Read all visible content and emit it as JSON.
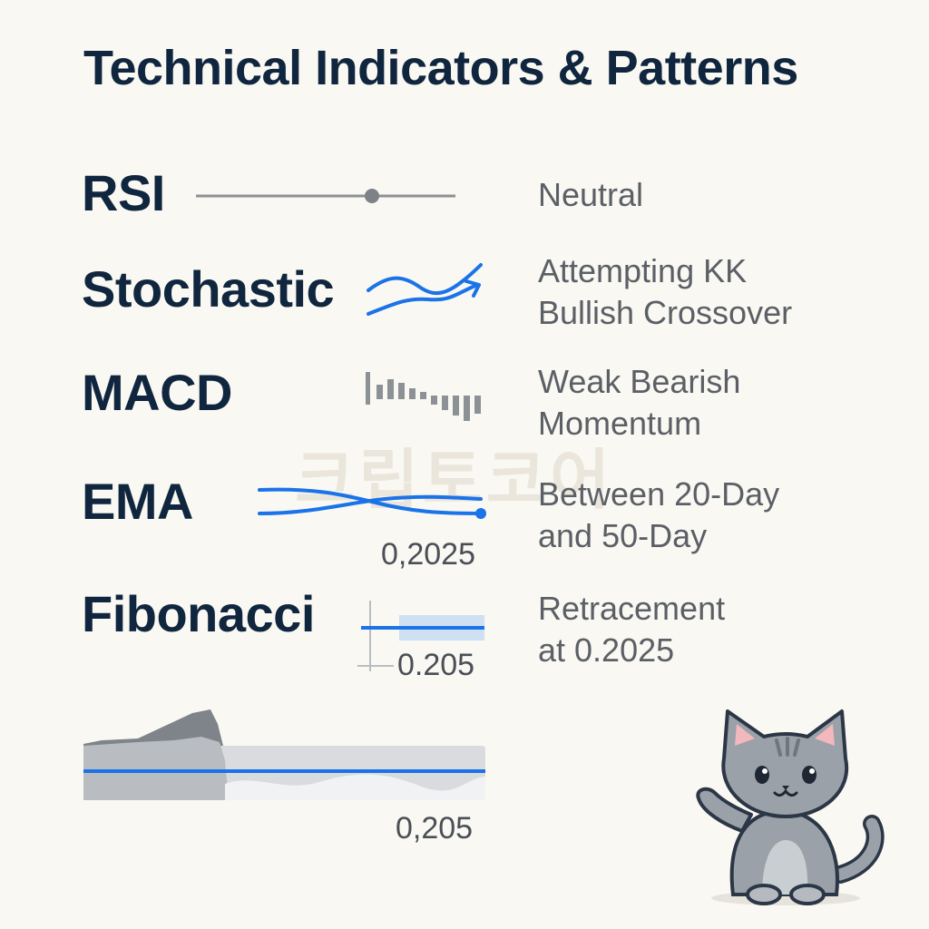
{
  "title": "Technical Indicators & Patterns",
  "watermark": "크립토코어",
  "indicators": [
    {
      "name": "RSI",
      "icon": "slider-line-icon",
      "status_lines": [
        "Neutral"
      ],
      "level": 0.68
    },
    {
      "name": "Stochastic",
      "icon": "crossing-waves-arrow-icon",
      "status_lines": [
        "Attempting KK",
        "Bullish Crossover"
      ]
    },
    {
      "name": "MACD",
      "icon": "histogram-bars-icon",
      "status_lines": [
        "Weak Bearish",
        "Momentum"
      ]
    },
    {
      "name": "EMA",
      "icon": "crossing-lines-icon",
      "status_lines": [
        "Between 20-Day",
        "and 50-Day"
      ],
      "value": "0,2025"
    },
    {
      "name": "Fibonacci",
      "icon": "retracement-band-icon",
      "status_lines": [
        "Retracement",
        "at 0.2025"
      ],
      "value": "0.205"
    }
  ],
  "area_chart": {
    "value": "0,205"
  },
  "colors": {
    "title": "#10263f",
    "accent": "#1a73e8",
    "muted": "#5b5f66",
    "gray": "#8c9196"
  },
  "mascot": "waving-cat-icon"
}
